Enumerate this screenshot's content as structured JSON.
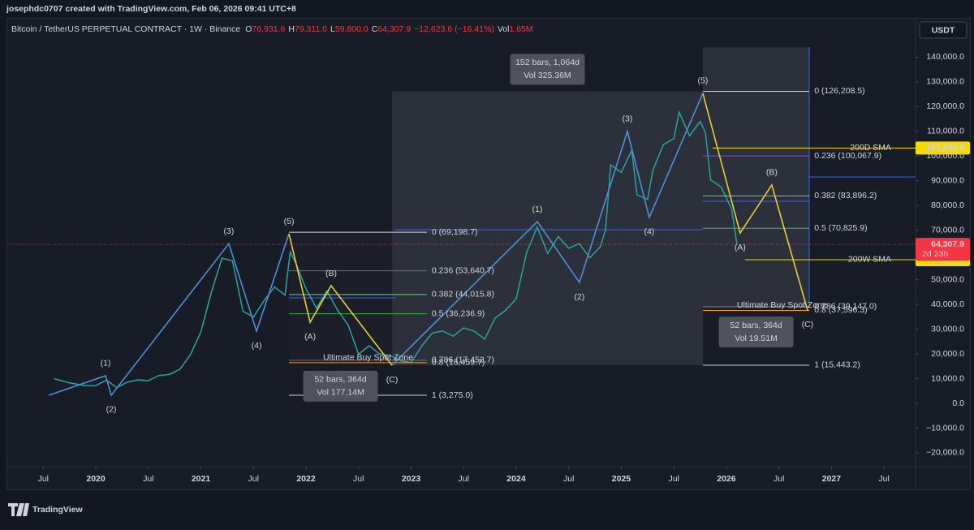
{
  "header": {
    "author_line": "josephdc0707 created with TradingView.com, Feb 06, 2026 09:41 UTC+8",
    "symbol": "Bitcoin / TetherUS PERPETUAL CONTRACT · 1W · Binance",
    "ohlc": [
      {
        "key": "O",
        "value": "76,931.6"
      },
      {
        "key": "H",
        "value": "79,311.0"
      },
      {
        "key": "L",
        "value": "59,800.0"
      },
      {
        "key": "C",
        "value": "64,307.9"
      }
    ],
    "change": "−12,623.6 (−16.41%)",
    "vol_key": "Vol",
    "vol": "1.65M",
    "currency": "USDT"
  },
  "footer": {
    "brand": "TradingView"
  },
  "chart_data": {
    "type": "line",
    "xlim": [
      2019.15,
      2027.8
    ],
    "ylim": [
      -25600,
      155900
    ],
    "xticks": [
      {
        "value": 2019.5,
        "label": "Jul"
      },
      2020,
      {
        "value": 2020.5,
        "label": "Jul"
      },
      2021,
      {
        "value": 2021.5,
        "label": "Jul"
      },
      2022,
      {
        "value": 2022.5,
        "label": "Jul"
      },
      2023,
      {
        "value": 2023.5,
        "label": "Jul"
      },
      2024,
      {
        "value": 2024.5,
        "label": "Jul"
      },
      2025,
      {
        "value": 2025.5,
        "label": "Jul"
      },
      2026,
      {
        "value": 2026.5,
        "label": "Jul"
      },
      2027,
      {
        "value": 2027.5,
        "label": "Jul"
      }
    ],
    "yticks": [
      {
        "value": 140000,
        "label": "140,000.0"
      },
      {
        "value": 130000,
        "label": "130,000.0"
      },
      {
        "value": 120000,
        "label": "120,000.0"
      },
      {
        "value": 110000,
        "label": "110,000.0"
      },
      {
        "value": 100000,
        "label": "100,000.0"
      },
      {
        "value": 90000,
        "label": "90,000.0"
      },
      {
        "value": 80000,
        "label": "80,000.0"
      },
      {
        "value": 70000,
        "label": "70,000.0"
      },
      {
        "value": 60000,
        "label": "60,000.0"
      },
      {
        "value": 50000,
        "label": "50,000.0"
      },
      {
        "value": 40000,
        "label": "40,000.0"
      },
      {
        "value": 30000,
        "label": "30,000.0"
      },
      {
        "value": 20000,
        "label": "20,000.0"
      },
      {
        "value": 10000,
        "label": "10,000.0"
      },
      {
        "value": 0,
        "label": "0.0"
      },
      {
        "value": -10000,
        "label": "−10,000.0"
      },
      {
        "value": -20000,
        "label": "−20,000.0"
      }
    ],
    "series": [
      {
        "color": "#26a69a",
        "x": [
          2019.6,
          2019.75,
          2019.9,
          2020.0,
          2020.1,
          2020.2,
          2020.3,
          2020.4,
          2020.5,
          2020.6,
          2020.7,
          2020.8,
          2020.9,
          2021.0,
          2021.1,
          2021.2,
          2021.3,
          2021.4,
          2021.5,
          2021.6,
          2021.7,
          2021.8,
          2021.85,
          2021.9,
          2022.0,
          2022.1,
          2022.2,
          2022.3,
          2022.4,
          2022.5,
          2022.6,
          2022.7,
          2022.8,
          2022.9,
          2023.0,
          2023.1,
          2023.2,
          2023.3,
          2023.4,
          2023.5,
          2023.6,
          2023.7,
          2023.8,
          2023.9,
          2024.0,
          2024.1,
          2024.2,
          2024.3,
          2024.4,
          2024.5,
          2024.6,
          2024.7,
          2024.8,
          2024.85,
          2024.9,
          2025.0,
          2025.1,
          2025.15,
          2025.25,
          2025.3,
          2025.4,
          2025.5,
          2025.55,
          2025.65,
          2025.75,
          2025.8,
          2025.85,
          2025.95,
          2026.05,
          2026.1
        ],
        "values": [
          10000,
          8300,
          7200,
          7200,
          9400,
          6400,
          8600,
          9500,
          9200,
          11300,
          11700,
          13800,
          19700,
          29000,
          45000,
          58700,
          57700,
          37300,
          35000,
          41500,
          47100,
          43800,
          61300,
          57000,
          46300,
          38500,
          45500,
          37700,
          31800,
          19900,
          23300,
          20000,
          19400,
          17200,
          16500,
          23100,
          28400,
          29300,
          27200,
          30500,
          29200,
          26000,
          34500,
          37700,
          42300,
          61100,
          71300,
          60600,
          67500,
          62700,
          64600,
          58900,
          63300,
          70200,
          96400,
          93400,
          102400,
          84300,
          82500,
          94200,
          104600,
          107100,
          117800,
          108200,
          114000,
          109600,
          90400,
          87500,
          78600,
          64307.9
        ]
      }
    ],
    "last_price": {
      "value": 64307.9,
      "label": "64,307.9",
      "countdown": "2d 23h",
      "color": "#f23645"
    },
    "waves": [
      {
        "color": "#4f8fd8",
        "x": [
          2019.552,
          2020.093,
          2020.147,
          2021.266,
          2021.529,
          2021.838
        ],
        "values": [
          3300,
          11200,
          3300,
          64600,
          29200,
          68600
        ],
        "labels": [
          null,
          "(1)",
          "(2)",
          "(3)",
          "(4)",
          "(5)"
        ]
      },
      {
        "color": "#e8cc3a",
        "x": [
          2021.838,
          2022.039,
          2022.239,
          2022.819
        ],
        "values": [
          68600,
          32800,
          47600,
          15400
        ],
        "labels": [
          null,
          "(A)",
          "(B)",
          "(C)"
        ]
      },
      {
        "color": "#4f8fd8",
        "x": [
          2022.819,
          2024.201,
          2024.602,
          2025.058,
          2025.266,
          2025.776
        ],
        "values": [
          15400,
          73500,
          48900,
          110000,
          75200,
          125400
        ],
        "labels": [
          null,
          "(1)",
          "(2)",
          "(3)",
          "(4)",
          "(5)"
        ]
      },
      {
        "color": "#e8cc3a",
        "x": [
          2025.776,
          2026.131,
          2026.432,
          2026.772
        ],
        "values": [
          125400,
          68900,
          88300,
          37700
        ],
        "labels": [
          null,
          "(A)",
          "(B)",
          "(C)"
        ]
      }
    ],
    "fibs": [
      {
        "x": [
          2021.838,
          2023.15
        ],
        "zone_label": "Ultimate Buy Spot Zone",
        "levels": [
          {
            "value": 69198.7,
            "label": "0 (69,198.7)",
            "color": "#d1d4dc"
          },
          {
            "value": 53640.7,
            "label": "0.236 (53,640.7)",
            "color": "#7e57c2"
          },
          {
            "value": 44015.8,
            "label": "0.382 (44,015.8)",
            "color": "#81c784"
          },
          {
            "value": 36236.9,
            "label": "0.5 (36,236.9)",
            "color": "#4caf50"
          },
          {
            "value": 17452.7,
            "label": "0.786 (17,452.7)",
            "color": "#5c6bc0"
          },
          {
            "value": 16459.7,
            "label": "0.8 (16,459.7)",
            "color": "#ff9800"
          },
          {
            "value": 3275.0,
            "label": "1 (3,275.0)",
            "color": "#d1d4dc"
          }
        ]
      },
      {
        "x": [
          2025.776,
          2026.79
        ],
        "zone_label": "Ultimate Buy Spot Zone",
        "levels": [
          {
            "value": 126208.5,
            "label": "0 (126,208.5)",
            "color": "#d1d4dc"
          },
          {
            "value": 100067.9,
            "label": "0.236 (100,067.9)",
            "color": "#7e57c2"
          },
          {
            "value": 83896.2,
            "label": "0.382 (83,896.2)",
            "color": "#81c784"
          },
          {
            "value": 70825.9,
            "label": "0.5 (70,825.9)",
            "color": "#4caf50"
          },
          {
            "value": 39147.0,
            "label": "0.786 (39,147.0)",
            "color": "#5c6bc0"
          },
          {
            "value": 37596.3,
            "label": "0.8 (37,596.3)",
            "color": "#ff9800"
          },
          {
            "value": 15443.2,
            "label": "1 (15,443.2)",
            "color": "#d1d4dc"
          }
        ]
      }
    ],
    "ranges": [
      {
        "x": [
          2022.819,
          2025.776
        ],
        "y": [
          15443.2,
          126208.5
        ],
        "shade": true,
        "label_side": "top",
        "lines": [
          "152 bars, 1,064d",
          "Vol 325.36M"
        ]
      },
      {
        "x": [
          2021.838,
          2022.819
        ],
        "y": [
          16459.7,
          69198.7
        ],
        "shade": false,
        "label_side": "bottom",
        "lines": [
          "52 bars, 364d",
          "Vol 177.14M"
        ]
      },
      {
        "x": [
          2025.776,
          2026.79
        ],
        "y": [
          38400,
          144000
        ],
        "shade": true,
        "label_side": "bottom",
        "lines": [
          "52 bars, 364d",
          "Vol 19.51M"
        ]
      }
    ],
    "indicators": [
      {
        "name": "200D SMA",
        "value": 103260.8,
        "label": "103,260.8",
        "color": "#f5d90a"
      },
      {
        "name": "200W SMA",
        "value": 58104.1,
        "label": "58,104.1",
        "color": "#f5d90a"
      }
    ]
  }
}
